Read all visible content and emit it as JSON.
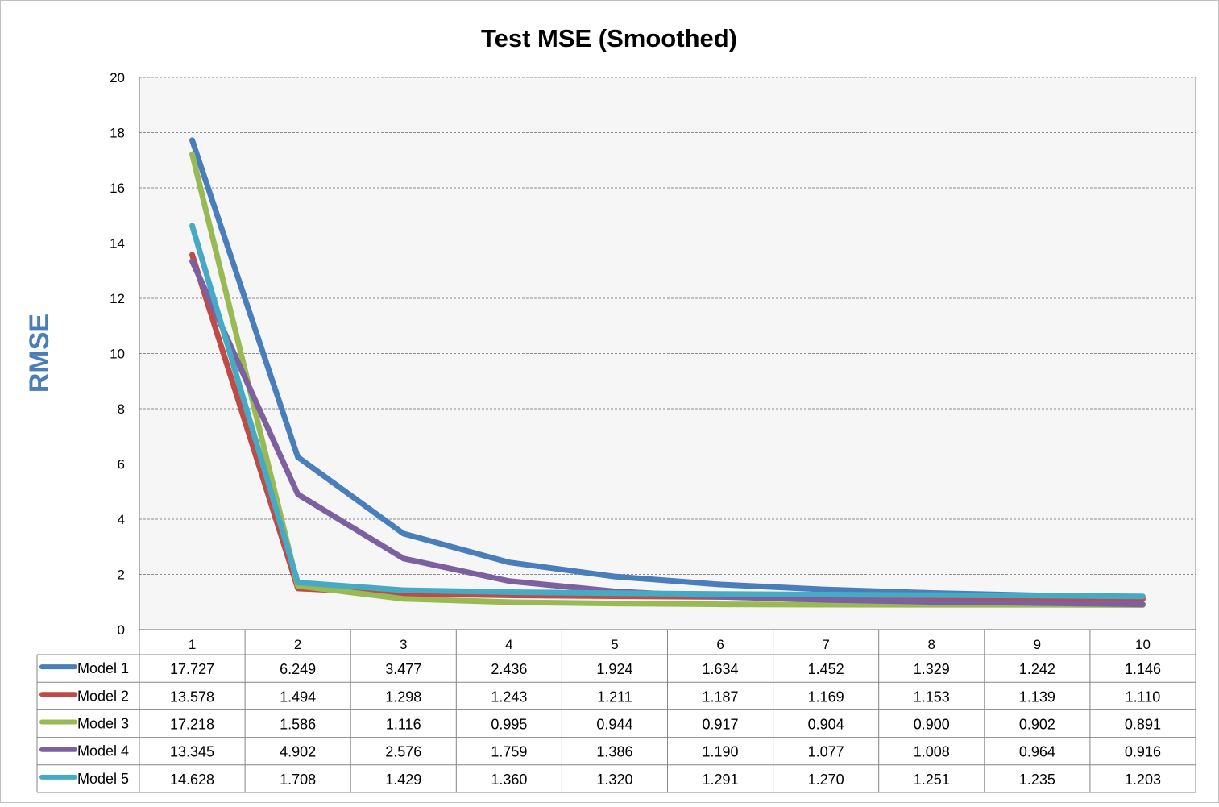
{
  "chart_data": {
    "type": "line",
    "title": "Test MSE (Smoothed)",
    "ylabel": "RMSE",
    "xlabel": "",
    "ylim": [
      0,
      20
    ],
    "yticks": [
      0,
      2,
      4,
      6,
      8,
      10,
      12,
      14,
      16,
      18,
      20
    ],
    "categories": [
      "1",
      "2",
      "3",
      "4",
      "5",
      "6",
      "7",
      "8",
      "9",
      "10"
    ],
    "grid": true,
    "legend": "data-table",
    "series": [
      {
        "name": "Model 1",
        "color": "#4a7ebb",
        "values": [
          17.727,
          6.249,
          3.477,
          2.436,
          1.924,
          1.634,
          1.452,
          1.329,
          1.242,
          1.146
        ],
        "labels": [
          "17.727",
          "6.249",
          "3.477",
          "2.436",
          "1.924",
          "1.634",
          "1.452",
          "1.329",
          "1.242",
          "1.146"
        ]
      },
      {
        "name": "Model 2",
        "color": "#be4b48",
        "values": [
          13.578,
          1.494,
          1.298,
          1.243,
          1.211,
          1.187,
          1.169,
          1.153,
          1.139,
          1.11
        ],
        "labels": [
          "13.578",
          "1.494",
          "1.298",
          "1.243",
          "1.211",
          "1.187",
          "1.169",
          "1.153",
          "1.139",
          "1.110"
        ]
      },
      {
        "name": "Model 3",
        "color": "#98b954",
        "values": [
          17.218,
          1.586,
          1.116,
          0.995,
          0.944,
          0.917,
          0.904,
          0.9,
          0.902,
          0.891
        ],
        "labels": [
          "17.218",
          "1.586",
          "1.116",
          "0.995",
          "0.944",
          "0.917",
          "0.904",
          "0.900",
          "0.902",
          "0.891"
        ]
      },
      {
        "name": "Model 4",
        "color": "#7d60a0",
        "values": [
          13.345,
          4.902,
          2.576,
          1.759,
          1.386,
          1.19,
          1.077,
          1.008,
          0.964,
          0.916
        ],
        "labels": [
          "13.345",
          "4.902",
          "2.576",
          "1.759",
          "1.386",
          "1.190",
          "1.077",
          "1.008",
          "0.964",
          "0.916"
        ]
      },
      {
        "name": "Model 5",
        "color": "#46aac5",
        "values": [
          14.628,
          1.708,
          1.429,
          1.36,
          1.32,
          1.291,
          1.27,
          1.251,
          1.235,
          1.203
        ],
        "labels": [
          "14.628",
          "1.708",
          "1.429",
          "1.360",
          "1.320",
          "1.291",
          "1.270",
          "1.251",
          "1.235",
          "1.203"
        ]
      }
    ],
    "colors": {
      "plot_background": "#f6f6f6",
      "gridline": "#8c8c8c",
      "axis": "#868686",
      "ylabel": "#4a7ebb",
      "text": "#000000"
    }
  }
}
